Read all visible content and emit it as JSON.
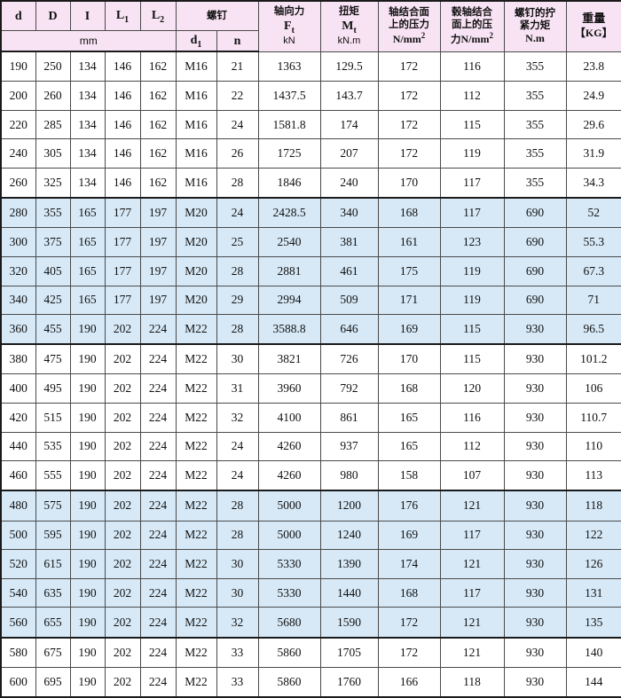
{
  "colors": {
    "header_bg": "#f8e3f4",
    "band_blue": "#d7e9f7",
    "band_white": "#ffffff",
    "grid_line": "#4a4a4a",
    "frame_line": "#1a1a1a"
  },
  "table": {
    "header": {
      "d": "d",
      "D": "D",
      "I": "I",
      "L1": {
        "base": "L",
        "sub": "1"
      },
      "L2": {
        "base": "L",
        "sub": "2"
      },
      "mm_unit": "mm",
      "screw_group": "螺钉",
      "d1": {
        "base": "d",
        "sub": "1"
      },
      "n": "n",
      "axial_force": {
        "title": "轴向力",
        "symbol": "F",
        "symbol_sub": "t",
        "unit": "kN"
      },
      "torque": {
        "title": "扭矩",
        "symbol": "M",
        "symbol_sub": "t",
        "unit": "kN.m"
      },
      "shaft_pressure": {
        "line1": "轴结合面",
        "line2": "上的压力",
        "unit_base": "N/mm",
        "unit_sup": "2"
      },
      "hub_pressure": {
        "line1": "毂轴结合",
        "line2": "面上的压",
        "line3_prefix": "力",
        "unit_base": "N/mm",
        "unit_sup": "2"
      },
      "tightening_torque": {
        "line1": "螺钉的拧",
        "line2": "紧力矩",
        "unit": "N.m"
      },
      "weight": {
        "title": "重量",
        "unit": "【KG】"
      }
    },
    "rows": [
      [
        190,
        250,
        134,
        146,
        162,
        "M16",
        21,
        1363,
        129.5,
        172,
        116,
        355,
        23.8
      ],
      [
        200,
        260,
        134,
        146,
        162,
        "M16",
        22,
        1437.5,
        143.7,
        172,
        112,
        355,
        24.9
      ],
      [
        220,
        285,
        134,
        146,
        162,
        "M16",
        24,
        1581.8,
        174,
        172,
        115,
        355,
        29.6
      ],
      [
        240,
        305,
        134,
        146,
        162,
        "M16",
        26,
        1725,
        207,
        172,
        119,
        355,
        31.9
      ],
      [
        260,
        325,
        134,
        146,
        162,
        "M16",
        28,
        1846,
        240,
        170,
        117,
        355,
        34.3
      ],
      [
        280,
        355,
        165,
        177,
        197,
        "M20",
        24,
        2428.5,
        340,
        168,
        117,
        690,
        52
      ],
      [
        300,
        375,
        165,
        177,
        197,
        "M20",
        25,
        2540,
        381,
        161,
        123,
        690,
        55.3
      ],
      [
        320,
        405,
        165,
        177,
        197,
        "M20",
        28,
        2881,
        461,
        175,
        119,
        690,
        67.3
      ],
      [
        340,
        425,
        165,
        177,
        197,
        "M20",
        29,
        2994,
        509,
        171,
        119,
        690,
        71
      ],
      [
        360,
        455,
        190,
        202,
        224,
        "M22",
        28,
        3588.8,
        646,
        169,
        115,
        930,
        96.5
      ],
      [
        380,
        475,
        190,
        202,
        224,
        "M22",
        30,
        3821,
        726,
        170,
        115,
        930,
        101.2
      ],
      [
        400,
        495,
        190,
        202,
        224,
        "M22",
        31,
        3960,
        792,
        168,
        120,
        930,
        106
      ],
      [
        420,
        515,
        190,
        202,
        224,
        "M22",
        32,
        4100,
        861,
        165,
        116,
        930,
        110.7
      ],
      [
        440,
        535,
        190,
        202,
        224,
        "M22",
        24,
        4260,
        937,
        165,
        112,
        930,
        110
      ],
      [
        460,
        555,
        190,
        202,
        224,
        "M22",
        24,
        4260,
        980,
        158,
        107,
        930,
        113
      ],
      [
        480,
        575,
        190,
        202,
        224,
        "M22",
        28,
        5000,
        1200,
        176,
        121,
        930,
        118
      ],
      [
        500,
        595,
        190,
        202,
        224,
        "M22",
        28,
        5000,
        1240,
        169,
        117,
        930,
        122
      ],
      [
        520,
        615,
        190,
        202,
        224,
        "M22",
        30,
        5330,
        1390,
        174,
        121,
        930,
        126
      ],
      [
        540,
        635,
        190,
        202,
        224,
        "M22",
        30,
        5330,
        1440,
        168,
        117,
        930,
        131
      ],
      [
        560,
        655,
        190,
        202,
        224,
        "M22",
        32,
        5680,
        1590,
        172,
        121,
        930,
        135
      ],
      [
        580,
        675,
        190,
        202,
        224,
        "M22",
        33,
        5860,
        1705,
        172,
        121,
        930,
        140
      ],
      [
        600,
        695,
        190,
        202,
        224,
        "M22",
        33,
        5860,
        1760,
        166,
        118,
        930,
        144
      ]
    ],
    "blue_rows": [
      5,
      6,
      7,
      8,
      9,
      15,
      16,
      17,
      18,
      19
    ],
    "group_start_rows": [
      5,
      10,
      15,
      20
    ]
  }
}
